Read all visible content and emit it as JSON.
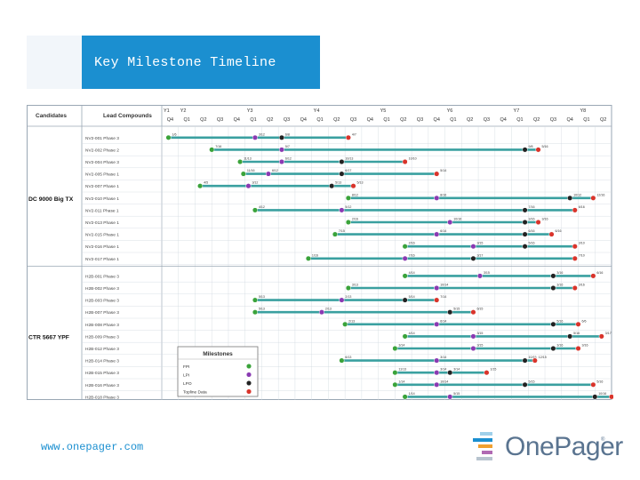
{
  "title": "Key Milestone Timeline",
  "footer_url": "www.onepager.com",
  "logo": {
    "text": "OnePager",
    "reg": "®"
  },
  "colors": {
    "title_bg": "#1b8fd0",
    "fpi": "#3aa33a",
    "lpi": "#8a3ab2",
    "lpo": "#222222",
    "topline": "#d9342b",
    "bar": "#3aa0a0",
    "grid": "#d0d8e0"
  },
  "chart_data": {
    "type": "table",
    "headers": {
      "candidates": "Candidates",
      "lead": "Lead Compounds"
    },
    "years": [
      "Y1",
      "Y2",
      "Y3",
      "Y4",
      "Y5",
      "Y6",
      "Y7",
      "Y8"
    ],
    "quarters": [
      "Q4",
      "Q1",
      "Q2",
      "Q3",
      "Q4",
      "Q1",
      "Q2",
      "Q3",
      "Q4",
      "Q1",
      "Q2",
      "Q3",
      "Q4",
      "Q1",
      "Q2",
      "Q3",
      "Q4",
      "Q1",
      "Q2",
      "Q3",
      "Q4",
      "Q1",
      "Q2",
      "Q3",
      "Q4",
      "Q1",
      "Q2"
    ],
    "groups": [
      {
        "name": "DC 9000 Big TX",
        "rows": [
          {
            "label": "NV2-001 Phase 3",
            "start": 0.4,
            "end": 11.2,
            "marks": [
              [
                0.4,
                "fpi",
                "1/6"
              ],
              [
                5.6,
                "lpi",
                "3/12"
              ],
              [
                7.2,
                "lpo",
                "6/8"
              ],
              [
                11.2,
                "topline",
                "4/7"
              ]
            ]
          },
          {
            "label": "NV2-002 Phase 2",
            "start": 3.0,
            "end": 22.6,
            "marks": [
              [
                3.0,
                "fpi",
                "7/16"
              ],
              [
                7.2,
                "lpi",
                "5/7"
              ],
              [
                21.8,
                "lpo",
                "9/8"
              ],
              [
                22.6,
                "topline",
                "5/16"
              ]
            ]
          },
          {
            "label": "NV2-004 Phase 3",
            "start": 4.7,
            "end": 14.6,
            "marks": [
              [
                4.7,
                "fpi",
                "11/13"
              ],
              [
                7.2,
                "lpi",
                "6/12"
              ],
              [
                10.8,
                "lpo",
                "10/13"
              ],
              [
                14.6,
                "topline",
                "10/10"
              ]
            ]
          },
          {
            "label": "NV2-005 Phase 1",
            "start": 4.9,
            "end": 16.5,
            "marks": [
              [
                4.9,
                "fpi",
                "11/16"
              ],
              [
                6.4,
                "lpi",
                "6/12"
              ],
              [
                10.8,
                "lpo",
                "6/17"
              ],
              [
                16.5,
                "topline",
                "5/14"
              ]
            ]
          },
          {
            "label": "NV2-007 Phase 1",
            "start": 2.3,
            "end": 11.5,
            "marks": [
              [
                2.3,
                "fpi",
                "4/5"
              ],
              [
                5.2,
                "lpi",
                "3/12"
              ],
              [
                10.2,
                "lpo",
                "5/13"
              ],
              [
                11.5,
                "topline",
                "5/13"
              ]
            ]
          },
          {
            "label": "NV2-010 Phase 1",
            "start": 11.2,
            "end": 25.9,
            "marks": [
              [
                11.2,
                "fpi",
                "8/12"
              ],
              [
                16.5,
                "lpi",
                "8/16"
              ],
              [
                24.5,
                "lpo",
                "10/12"
              ],
              [
                25.9,
                "topline",
                "12/16"
              ]
            ]
          },
          {
            "label": "NV2-011 Phase 1",
            "start": 5.6,
            "end": 24.8,
            "marks": [
              [
                5.6,
                "fpi",
                "4/12"
              ],
              [
                10.8,
                "lpi",
                "5/12"
              ],
              [
                21.8,
                "lpo",
                "7/16"
              ],
              [
                24.8,
                "topline",
                "6/16"
              ]
            ]
          },
          {
            "label": "NV2-013 Phase 1",
            "start": 11.2,
            "end": 22.6,
            "marks": [
              [
                11.2,
                "fpi",
                "2/16"
              ],
              [
                17.3,
                "lpi",
                "10/16"
              ],
              [
                21.8,
                "lpo",
                "3/16"
              ],
              [
                22.6,
                "topline",
                "3/16"
              ]
            ]
          },
          {
            "label": "NV2-015 Phase 1",
            "start": 10.4,
            "end": 23.4,
            "marks": [
              [
                10.4,
                "fpi",
                "7/15"
              ],
              [
                16.5,
                "lpi",
                "6/14"
              ],
              [
                21.8,
                "lpo",
                "6/16"
              ],
              [
                23.4,
                "topline",
                "6/16"
              ]
            ]
          },
          {
            "label": "NV2-016 Phase 1",
            "start": 14.6,
            "end": 24.8,
            "marks": [
              [
                14.6,
                "fpi",
                "2/16"
              ],
              [
                18.7,
                "lpi",
                "3/15"
              ],
              [
                21.8,
                "lpo",
                "5/16"
              ],
              [
                24.8,
                "topline",
                "3/10"
              ]
            ]
          },
          {
            "label": "NV2-017 Phase 1",
            "start": 8.8,
            "end": 24.8,
            "marks": [
              [
                8.8,
                "fpi",
                "1/16"
              ],
              [
                14.6,
                "lpi",
                "7/16"
              ],
              [
                18.7,
                "lpo",
                "3/17"
              ],
              [
                24.8,
                "topline",
                "7/10"
              ]
            ]
          }
        ]
      },
      {
        "name": "CTR 5667 YPF",
        "rows": [
          {
            "label": "H2B-001 Phase 3",
            "start": 14.6,
            "end": 25.9,
            "marks": [
              [
                14.6,
                "fpi",
                "4/14"
              ],
              [
                19.1,
                "lpi",
                "3/15"
              ],
              [
                23.5,
                "lpo",
                "3/16"
              ],
              [
                25.9,
                "topline",
                "6/16"
              ]
            ]
          },
          {
            "label": "H2B-002 Phase 3",
            "start": 11.2,
            "end": 24.8,
            "marks": [
              [
                11.2,
                "fpi",
                "3/13"
              ],
              [
                16.5,
                "lpi",
                "10/14"
              ],
              [
                23.5,
                "lpo",
                "3/16"
              ],
              [
                24.8,
                "topline",
                "3/16"
              ]
            ]
          },
          {
            "label": "H2B-003 Phase 3",
            "start": 5.6,
            "end": 16.5,
            "marks": [
              [
                5.6,
                "fpi",
                "5/13"
              ],
              [
                10.8,
                "lpi",
                "2/13"
              ],
              [
                14.6,
                "lpo",
                "5/14"
              ],
              [
                16.5,
                "topline",
                "7/14"
              ]
            ]
          },
          {
            "label": "H2B-007 Phase 3",
            "start": 5.6,
            "end": 18.7,
            "marks": [
              [
                5.6,
                "fpi",
                "5/13"
              ],
              [
                9.6,
                "lpi",
                "2/13"
              ],
              [
                17.3,
                "lpo",
                "5/15"
              ],
              [
                18.7,
                "topline",
                "6/15"
              ]
            ]
          },
          {
            "label": "H2B-008 Phase 3",
            "start": 11.0,
            "end": 25.0,
            "marks": [
              [
                11.0,
                "fpi",
                "2/13"
              ],
              [
                16.5,
                "lpi",
                "6/14"
              ],
              [
                23.5,
                "lpo",
                "5/16"
              ],
              [
                25.0,
                "topline",
                "6/6"
              ]
            ]
          },
          {
            "label": "H2B-009 Phase 3",
            "start": 14.6,
            "end": 26.4,
            "marks": [
              [
                14.6,
                "fpi",
                "4/14"
              ],
              [
                18.7,
                "lpi",
                "3/15"
              ],
              [
                24.5,
                "lpo",
                "5/16"
              ],
              [
                26.4,
                "topline",
                "3/17"
              ]
            ]
          },
          {
            "label": "H2B-012 Phase 3",
            "start": 14.0,
            "end": 25.0,
            "marks": [
              [
                14.0,
                "fpi",
                "3/14"
              ],
              [
                18.7,
                "lpi",
                "3/15"
              ],
              [
                23.5,
                "lpo",
                "3/16"
              ],
              [
                25.0,
                "topline",
                "3/16"
              ]
            ]
          },
          {
            "label": "H2B-014 Phase 3",
            "start": 10.8,
            "end": 22.4,
            "marks": [
              [
                10.8,
                "fpi",
                "6/13"
              ],
              [
                16.5,
                "lpi",
                "3/14"
              ],
              [
                21.8,
                "lpo",
                "10/15"
              ],
              [
                22.4,
                "topline",
                "12/15"
              ]
            ]
          },
          {
            "label": "H2B-015 Phase 3",
            "start": 14.0,
            "end": 19.5,
            "marks": [
              [
                14.0,
                "fpi",
                "11/13"
              ],
              [
                16.5,
                "lpi",
                "3/14"
              ],
              [
                17.3,
                "lpo",
                "3/14"
              ],
              [
                19.5,
                "topline",
                "1/15"
              ]
            ]
          },
          {
            "label": "H2B-016 Phase 3",
            "start": 14.0,
            "end": 25.9,
            "marks": [
              [
                14.0,
                "fpi",
                "1/14"
              ],
              [
                16.5,
                "lpi",
                "10/14"
              ],
              [
                21.8,
                "lpo",
                "5/15"
              ],
              [
                25.9,
                "topline",
                "5/16"
              ]
            ]
          },
          {
            "label": "H2B-018 Phase 3",
            "start": 14.6,
            "end": 27.0,
            "marks": [
              [
                14.6,
                "fpi",
                "1/14"
              ],
              [
                17.3,
                "lpi",
                "5/15"
              ],
              [
                26.0,
                "lpo",
                "10/16"
              ],
              [
                27.0,
                "topline",
                "3/17"
              ]
            ]
          }
        ]
      }
    ],
    "legend": {
      "title": "Milestones",
      "items": [
        {
          "label": "FPI",
          "type": "fpi"
        },
        {
          "label": "LPI",
          "type": "lpi"
        },
        {
          "label": "LPO",
          "type": "lpo"
        },
        {
          "label": "Topline Data",
          "type": "topline"
        }
      ]
    }
  }
}
